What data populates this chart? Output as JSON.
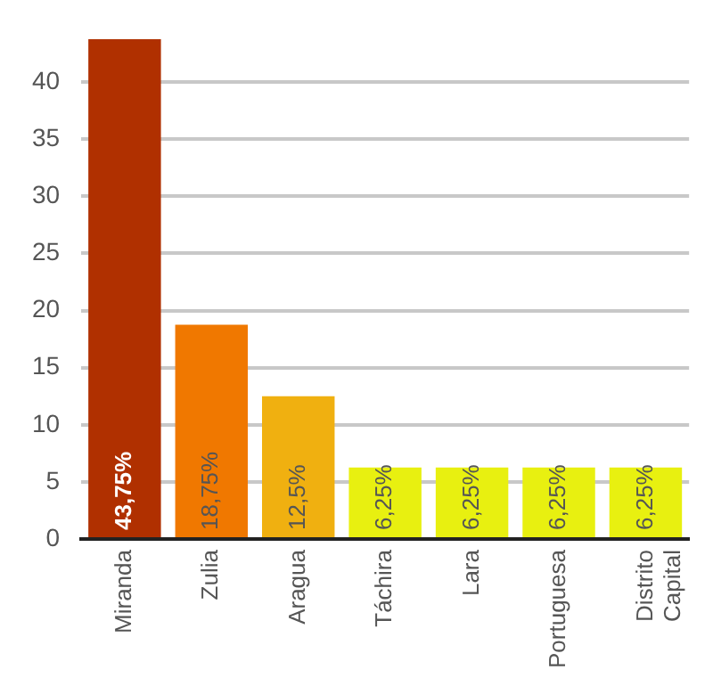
{
  "chart_data": {
    "type": "bar",
    "categories": [
      "Miranda",
      "Zulia",
      "Aragua",
      "Táchira",
      "Lara",
      "Portuguesa",
      "Distrito Capital"
    ],
    "values": [
      43.75,
      18.75,
      12.5,
      6.25,
      6.25,
      6.25,
      6.25
    ],
    "colors": [
      "#b03000",
      "#f07800",
      "#f0b010",
      "#e8f010",
      "#e8f010",
      "#e8f010",
      "#e8f010"
    ],
    "value_labels": [
      "43,75%",
      "18,75%",
      "12,5%",
      "6,25%",
      "6,25%",
      "6,25%",
      "6,25%"
    ],
    "ylim": [
      0,
      44
    ],
    "yticks": [
      0,
      5,
      10,
      15,
      20,
      25,
      30,
      35,
      40
    ],
    "grid": "y",
    "legend": false
  }
}
